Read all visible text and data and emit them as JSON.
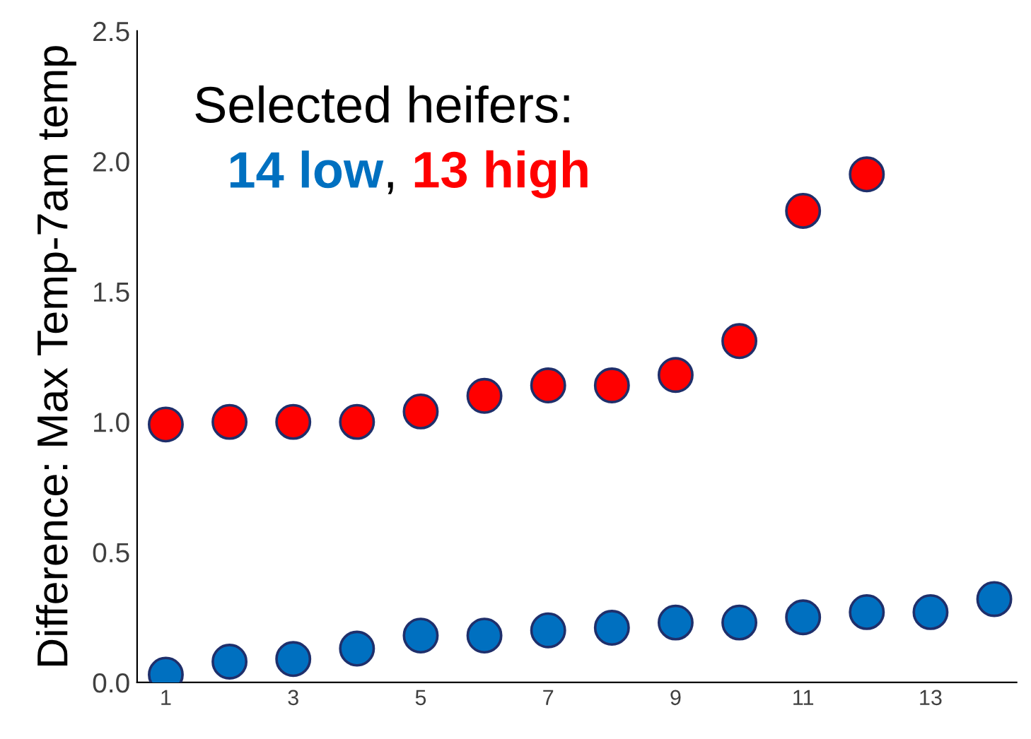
{
  "chart_data": {
    "type": "scatter",
    "title": "Selected heifers:",
    "ylabel": "Difference: Max Temp-7am temp",
    "x": [
      1,
      2,
      3,
      4,
      5,
      6,
      7,
      8,
      9,
      10,
      11,
      12,
      13,
      14
    ],
    "series": [
      {
        "name": "14 low",
        "color": "#0070c0",
        "values": [
          0.03,
          0.08,
          0.09,
          0.13,
          0.18,
          0.18,
          0.2,
          0.21,
          0.23,
          0.23,
          0.25,
          0.27,
          0.27,
          0.32
        ]
      },
      {
        "name": "13 high",
        "color": "#ff0000",
        "values": [
          0.99,
          1.0,
          1.0,
          1.0,
          1.04,
          1.1,
          1.14,
          1.14,
          1.18,
          1.31,
          1.81,
          1.95,
          null,
          null
        ]
      }
    ],
    "annotations": [
      ","
    ],
    "xlim": [
      0.55,
      14.35
    ],
    "xticks": [
      1,
      3,
      5,
      7,
      9,
      11,
      13
    ],
    "ylim": [
      0,
      2.5
    ],
    "yticks": [
      {
        "value": 0,
        "label": "0.0"
      },
      {
        "value": 0.5,
        "label": "0.5"
      },
      {
        "value": 1,
        "label": "1.0"
      },
      {
        "value": 1.5,
        "label": "1.5"
      },
      {
        "value": 2,
        "label": "2.0"
      },
      {
        "value": 2.5,
        "label": "2.5"
      }
    ],
    "marker": "circle",
    "grid": false,
    "legend": false
  }
}
